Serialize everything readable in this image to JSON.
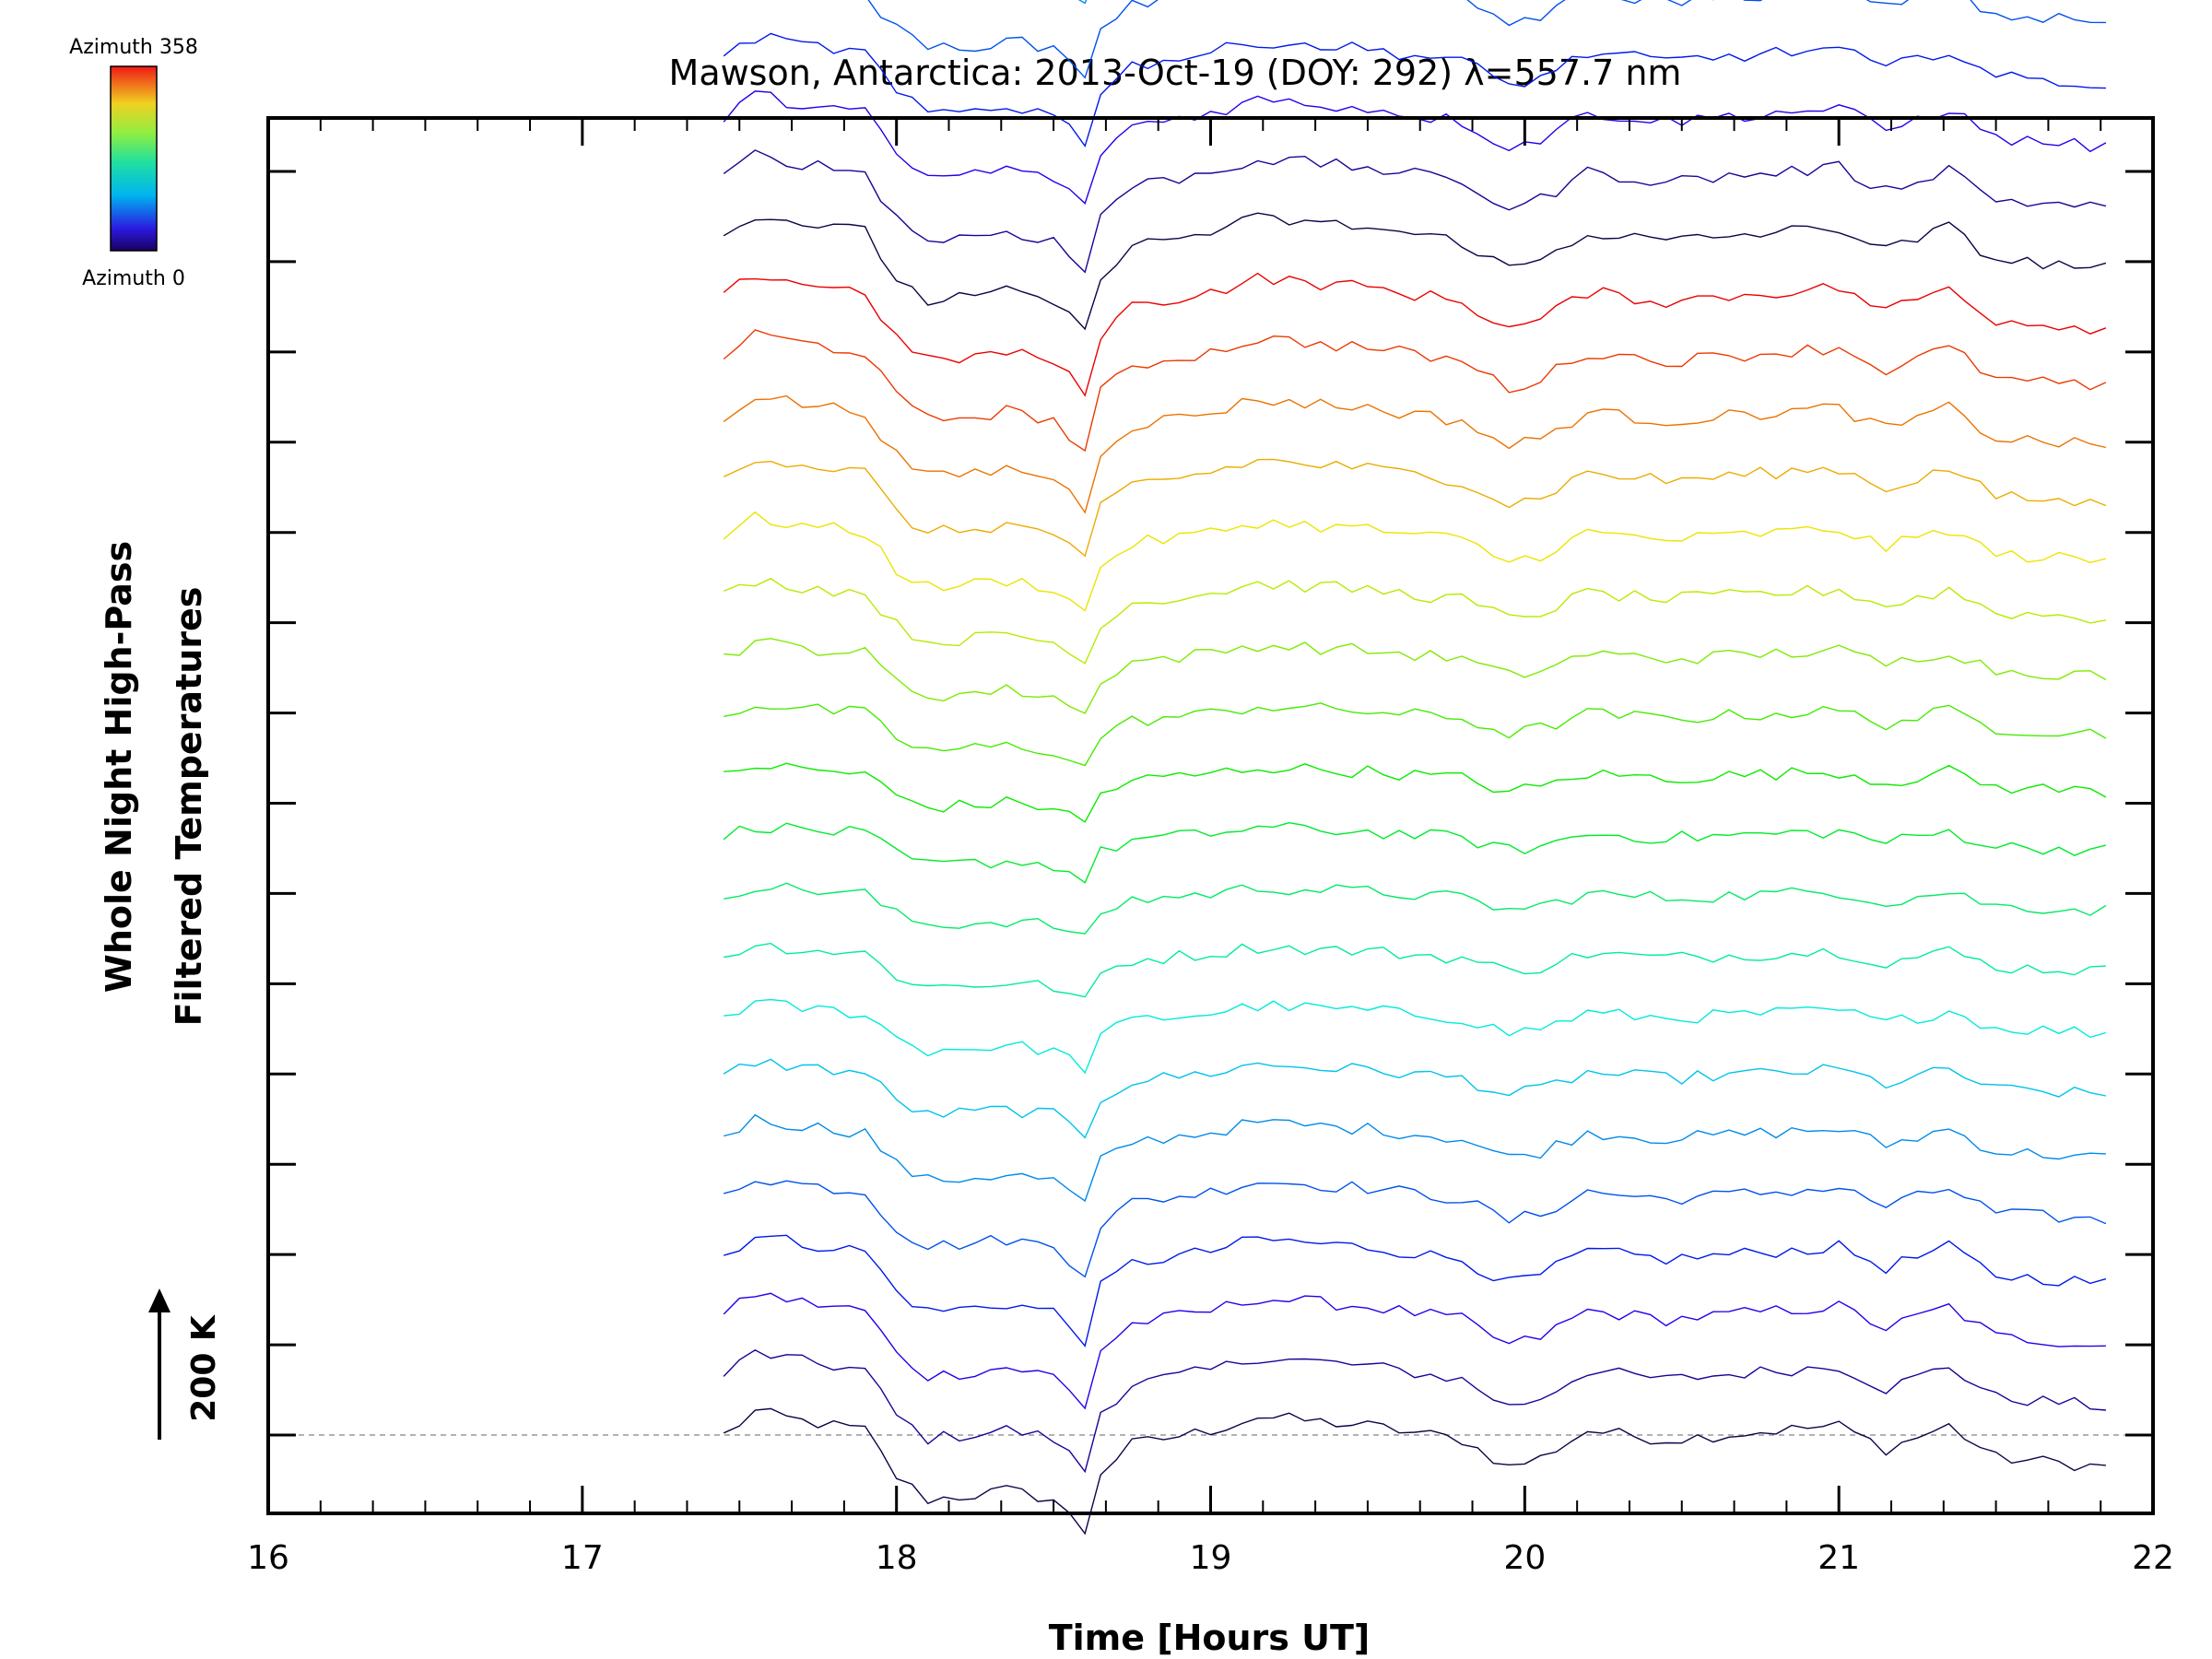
{
  "chart_data": {
    "type": "line",
    "title": "Mawson, Antarctica: 2013-Oct-19 (DOY: 292) λ=557.7 nm",
    "xlabel": "Time [Hours UT]",
    "ylabel_line1": "Whole Night High-Pass",
    "ylabel_line2": "Filtered Temperatures",
    "xlim": [
      16,
      22
    ],
    "xticks": [
      16,
      17,
      18,
      19,
      20,
      21,
      22
    ],
    "x_minor_step": 0.166667,
    "y_major_ticks": 15,
    "scale_bar_label": "200 K",
    "baseline_dashed": true,
    "colorbar": {
      "top_label": "Azimuth 358",
      "bottom_label": "Azimuth 0",
      "colormap": "rainbow"
    },
    "groups": 7,
    "traces_per_group": 20,
    "time_start": 17.45,
    "time_end": 21.85,
    "time_step": 0.05,
    "group_spacing_K": 1300,
    "trace_spacing_K": 65,
    "common_signal": {
      "times": [
        17.45,
        17.55,
        17.7,
        17.9,
        18.0,
        18.1,
        18.25,
        18.35,
        18.5,
        18.6,
        18.65,
        18.75,
        19.0,
        19.15,
        19.5,
        19.8,
        19.95,
        20.05,
        20.2,
        20.45,
        20.8,
        21.0,
        21.15,
        21.35,
        21.5,
        21.7,
        21.85
      ],
      "values": [
        0,
        25,
        15,
        5,
        -45,
        -70,
        -65,
        -60,
        -70,
        -105,
        -40,
        -10,
        5,
        20,
        10,
        -5,
        -35,
        -25,
        5,
        -5,
        5,
        10,
        -15,
        10,
        -25,
        -30,
        -35
      ]
    }
  }
}
